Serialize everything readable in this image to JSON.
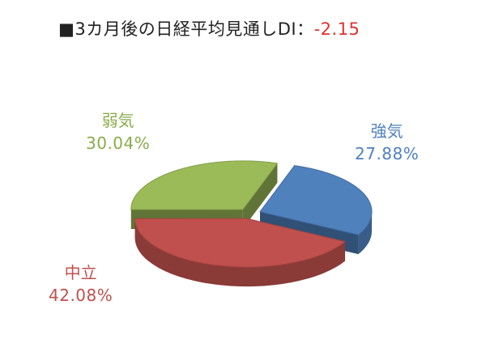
{
  "title": {
    "prefix": "■3カ月後の日経平均見通しDI：",
    "value": "-2.15"
  },
  "chart_data": {
    "type": "pie",
    "style": "3d-exploded",
    "slices": [
      {
        "label": "強気",
        "value": 27.88,
        "value_text": "27.88%",
        "color": "#4f81bd"
      },
      {
        "label": "中立",
        "value": 42.08,
        "value_text": "42.08%",
        "color": "#c0504d"
      },
      {
        "label": "弱気",
        "value": 30.04,
        "value_text": "30.04%",
        "color": "#9bbb59"
      }
    ]
  }
}
